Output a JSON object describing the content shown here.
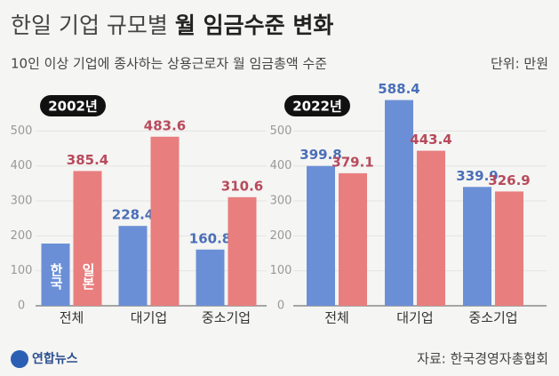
{
  "header": {
    "title": "한일 기업 규모별",
    "title_bold": "월 임금수준 변화",
    "subtitle": "10인 이상 기업에 종사하는 상용근로자 월 임금총액 수준",
    "unit": "단위: 만원"
  },
  "chart_data": [
    {
      "type": "bar",
      "title": "2002년",
      "categories": [
        "전체",
        "대기업",
        "중소기업"
      ],
      "series": [
        {
          "name": "한국",
          "color": "#6b8fd6",
          "values": [
            178,
            228.4,
            160.8
          ]
        },
        {
          "name": "일본",
          "color": "#e87e7e",
          "values": [
            385.4,
            483.6,
            310.6
          ]
        }
      ],
      "value_labels_shown": [
        [
          false,
          true,
          true
        ],
        [
          true,
          true,
          true
        ]
      ],
      "ylim": [
        0,
        600
      ],
      "yticks": [
        0,
        100,
        200,
        300,
        400,
        500
      ],
      "grid": true,
      "legend": "inside"
    },
    {
      "type": "bar",
      "title": "2022년",
      "categories": [
        "전체",
        "대기업",
        "중소기업"
      ],
      "series": [
        {
          "name": "한국",
          "color": "#6b8fd6",
          "values": [
            399.8,
            588.4,
            339.9
          ]
        },
        {
          "name": "일본",
          "color": "#e87e7e",
          "values": [
            379.1,
            443.4,
            326.9
          ]
        }
      ],
      "value_labels_shown": [
        [
          true,
          true,
          true
        ],
        [
          true,
          true,
          true
        ]
      ],
      "ylim": [
        0,
        600
      ],
      "yticks": [
        0,
        100,
        200,
        300,
        400,
        500
      ],
      "grid": true
    }
  ],
  "footer": {
    "logo": "연합뉴스",
    "source": "자료: 한국경영자총협회"
  }
}
